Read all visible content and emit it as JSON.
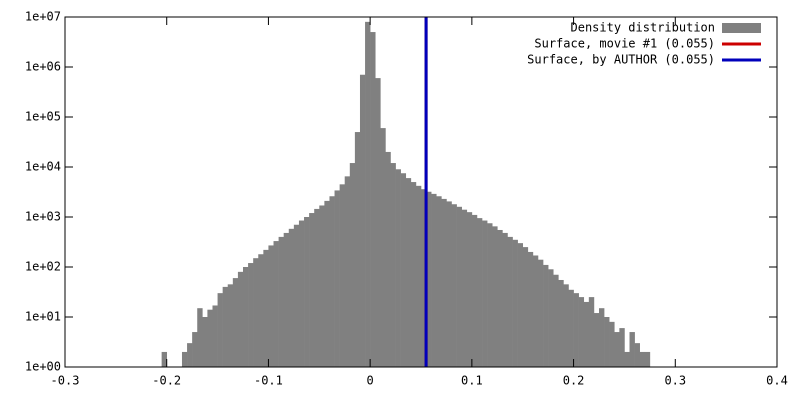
{
  "chart_data": {
    "type": "histogram",
    "log_y": true,
    "series": [
      {
        "name": "Density distribution",
        "color": "#808080",
        "bins": [
          -0.205,
          -0.2,
          -0.195,
          -0.19,
          -0.185,
          -0.18,
          -0.175,
          -0.17,
          -0.165,
          -0.16,
          -0.155,
          -0.15,
          -0.145,
          -0.14,
          -0.135,
          -0.13,
          -0.125,
          -0.12,
          -0.115,
          -0.11,
          -0.105,
          -0.1,
          -0.095,
          -0.09,
          -0.085,
          -0.08,
          -0.075,
          -0.07,
          -0.065,
          -0.06,
          -0.055,
          -0.05,
          -0.045,
          -0.04,
          -0.035,
          -0.03,
          -0.025,
          -0.02,
          -0.015,
          -0.01,
          -0.005,
          0,
          0.005,
          0.01,
          0.015,
          0.02,
          0.025,
          0.03,
          0.035,
          0.04,
          0.045,
          0.05,
          0.055,
          0.06,
          0.065,
          0.07,
          0.075,
          0.08,
          0.085,
          0.09,
          0.095,
          0.1,
          0.105,
          0.11,
          0.115,
          0.12,
          0.125,
          0.13,
          0.135,
          0.14,
          0.145,
          0.15,
          0.155,
          0.16,
          0.165,
          0.17,
          0.175,
          0.18,
          0.185,
          0.19,
          0.195,
          0.2,
          0.205,
          0.21,
          0.215,
          0.22,
          0.225,
          0.23,
          0.235,
          0.24,
          0.245,
          0.25,
          0.255,
          0.26,
          0.265,
          0.27,
          0.275
        ],
        "values": [
          2,
          0,
          0,
          0,
          2,
          3,
          5,
          15,
          10,
          14,
          17,
          30,
          40,
          45,
          60,
          80,
          100,
          120,
          150,
          180,
          220,
          270,
          330,
          400,
          480,
          580,
          700,
          850,
          1000,
          1200,
          1450,
          1700,
          2100,
          2600,
          3400,
          4500,
          6500,
          12000,
          50000,
          700000,
          8000000,
          5000000,
          600000,
          60000,
          20000,
          12000,
          9000,
          7500,
          6000,
          5000,
          4200,
          3600,
          3200,
          2900,
          2600,
          2300,
          2050,
          1800,
          1600,
          1400,
          1250,
          1100,
          950,
          850,
          750,
          650,
          550,
          480,
          400,
          350,
          300,
          250,
          200,
          170,
          140,
          110,
          90,
          70,
          55,
          45,
          35,
          30,
          25,
          20,
          25,
          12,
          15,
          10,
          8,
          5,
          6,
          2,
          5,
          3,
          2,
          2
        ]
      }
    ],
    "vlines": [
      {
        "name": "Surface, movie #1 (0.055)",
        "color": "#cc0000",
        "x": 0.055
      },
      {
        "name": "Surface, by AUTHOR (0.055)",
        "color": "#0000bb",
        "x": 0.055
      }
    ],
    "xlim": [
      -0.3,
      0.4
    ],
    "xticks": [
      -0.3,
      -0.2,
      -0.1,
      0,
      0.1,
      0.2,
      0.3,
      0.4
    ],
    "ylim": [
      1,
      10000000
    ],
    "yticks": [
      {
        "value": 1,
        "label": "1e+00"
      },
      {
        "value": 10,
        "label": "1e+01"
      },
      {
        "value": 100,
        "label": "1e+02"
      },
      {
        "value": 1000,
        "label": "1e+03"
      },
      {
        "value": 10000,
        "label": "1e+04"
      },
      {
        "value": 100000,
        "label": "1e+05"
      },
      {
        "value": 1000000,
        "label": "1e+06"
      },
      {
        "value": 10000000,
        "label": "1e+07"
      }
    ]
  }
}
